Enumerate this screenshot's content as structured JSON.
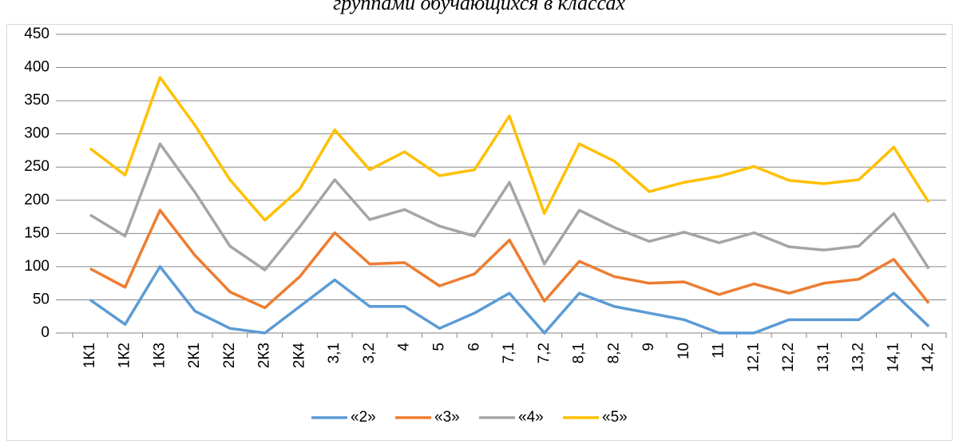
{
  "chart_data": {
    "type": "line",
    "stacked": true,
    "title": "группами обучающихся в классах",
    "categories": [
      "1К1",
      "1К2",
      "1К3",
      "2К1",
      "2К2",
      "2К3",
      "2К4",
      "3,1",
      "3,2",
      "4",
      "5",
      "6",
      "7,1",
      "7,2",
      "8,1",
      "8,2",
      "9",
      "10",
      "11",
      "12,1",
      "12,2",
      "13,1",
      "13,2",
      "14,1",
      "14,2"
    ],
    "series": [
      {
        "name": "«2»",
        "color": "#5b9bd5",
        "values": [
          50,
          13,
          100,
          33,
          7,
          0,
          40,
          80,
          40,
          40,
          7,
          30,
          60,
          0,
          60,
          40,
          30,
          20,
          0,
          0,
          20,
          20,
          20,
          60,
          10
        ]
      },
      {
        "name": "«3»",
        "color": "#ed7d31",
        "values": [
          47,
          56,
          85,
          84,
          55,
          38,
          45,
          71,
          64,
          66,
          64,
          59,
          80,
          48,
          48,
          45,
          45,
          57,
          58,
          74,
          40,
          55,
          61,
          51,
          35
        ]
      },
      {
        "name": "«4»",
        "color": "#a5a5a5",
        "values": [
          81,
          77,
          100,
          95,
          69,
          57,
          75,
          80,
          67,
          80,
          90,
          57,
          87,
          56,
          77,
          74,
          63,
          75,
          78,
          77,
          70,
          50,
          50,
          69,
          52
        ]
      },
      {
        "name": "«5»",
        "color": "#ffc000",
        "values": [
          100,
          92,
          100,
          101,
          100,
          75,
          57,
          75,
          75,
          87,
          76,
          100,
          100,
          76,
          100,
          100,
          75,
          75,
          100,
          100,
          100,
          100,
          100,
          100,
          100
        ]
      }
    ],
    "ylim": [
      0,
      450
    ],
    "yticks": [
      0,
      50,
      100,
      150,
      200,
      250,
      300,
      350,
      400,
      450
    ],
    "grid": true,
    "legend": "bottom"
  }
}
